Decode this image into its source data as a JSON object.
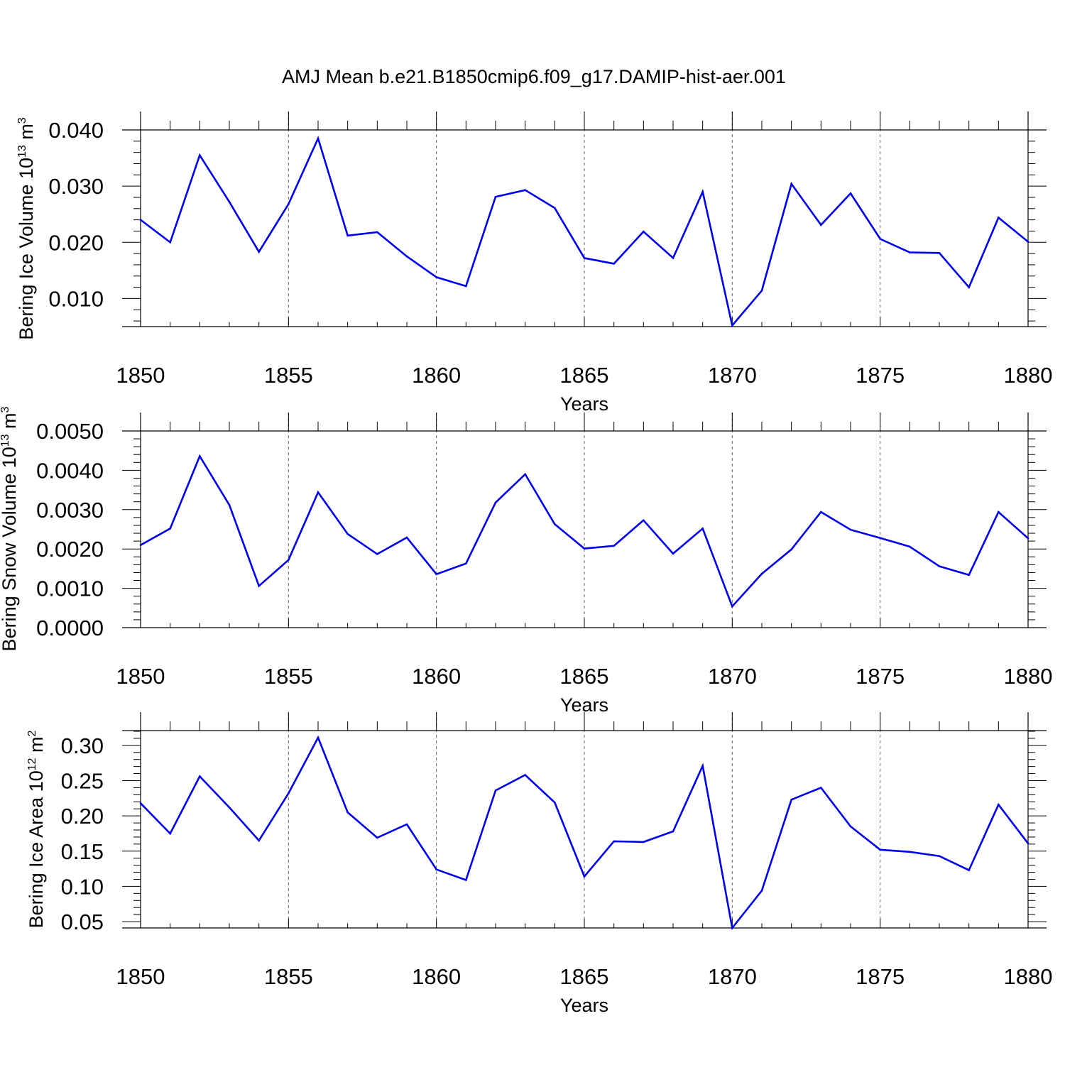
{
  "title": "AMJ Mean b.e21.B1850cmip6.f09_g17.DAMIP-hist-aer.001",
  "line_color": "#0000ee",
  "chart_data": [
    {
      "type": "line",
      "ylabel": {
        "text": "Bering Ice Volume 10",
        "sup": "13",
        "unit": " m",
        "unit_sup": "3"
      },
      "xlabel": "Years",
      "xlim": [
        1850,
        1880
      ],
      "ylim": [
        0.005,
        0.04
      ],
      "yticks": [
        0.01,
        0.02,
        0.03,
        0.04
      ],
      "ytick_labels": [
        "0.010",
        "0.020",
        "0.030",
        "0.040"
      ],
      "xticks": [
        1850,
        1855,
        1860,
        1865,
        1870,
        1875,
        1880
      ],
      "xtick_labels": [
        "1850",
        "1855",
        "1860",
        "1865",
        "1870",
        "1875",
        "1880"
      ],
      "grid": "dashed vertical lines at major x ticks",
      "x": [
        1850,
        1851,
        1852,
        1853,
        1854,
        1855,
        1856,
        1857,
        1858,
        1859,
        1860,
        1861,
        1862,
        1863,
        1864,
        1865,
        1866,
        1867,
        1868,
        1869,
        1870,
        1871,
        1872,
        1873,
        1874,
        1875,
        1876,
        1877,
        1878,
        1879,
        1880
      ],
      "values": [
        0.024,
        0.02,
        0.0355,
        0.0272,
        0.0183,
        0.0268,
        0.0385,
        0.0212,
        0.0218,
        0.0175,
        0.0138,
        0.0122,
        0.0281,
        0.0293,
        0.0261,
        0.0172,
        0.0162,
        0.0219,
        0.0172,
        0.029,
        0.0052,
        0.0114,
        0.0304,
        0.0231,
        0.0287,
        0.0206,
        0.0182,
        0.0181,
        0.012,
        0.0244,
        0.0201
      ]
    },
    {
      "type": "line",
      "ylabel": {
        "text": "Bering Snow Volume 10",
        "sup": "13",
        "unit": " m",
        "unit_sup": "3"
      },
      "xlabel": "Years",
      "xlim": [
        1850,
        1880
      ],
      "ylim": [
        0.0,
        0.005
      ],
      "yticks": [
        0.0,
        0.001,
        0.002,
        0.003,
        0.004,
        0.005
      ],
      "ytick_labels": [
        "0.0000",
        "0.0010",
        "0.0020",
        "0.0030",
        "0.0040",
        "0.0050"
      ],
      "xticks": [
        1850,
        1855,
        1860,
        1865,
        1870,
        1875,
        1880
      ],
      "xtick_labels": [
        "1850",
        "1855",
        "1860",
        "1865",
        "1870",
        "1875",
        "1880"
      ],
      "grid": "dashed vertical lines at major x ticks",
      "x": [
        1850,
        1851,
        1852,
        1853,
        1854,
        1855,
        1856,
        1857,
        1858,
        1859,
        1860,
        1861,
        1862,
        1863,
        1864,
        1865,
        1866,
        1867,
        1868,
        1869,
        1870,
        1871,
        1872,
        1873,
        1874,
        1875,
        1876,
        1877,
        1878,
        1879,
        1880
      ],
      "values": [
        0.0021,
        0.00252,
        0.00436,
        0.00312,
        0.00106,
        0.00172,
        0.00344,
        0.00238,
        0.00187,
        0.00229,
        0.00136,
        0.00163,
        0.00318,
        0.0039,
        0.00263,
        0.00201,
        0.00208,
        0.00273,
        0.00188,
        0.00252,
        0.00054,
        0.00137,
        0.00199,
        0.00294,
        0.00249,
        0.00228,
        0.00206,
        0.00156,
        0.00134,
        0.00294,
        0.00227
      ]
    },
    {
      "type": "line",
      "ylabel": {
        "text": "Bering Ice Area 10",
        "sup": "12",
        "unit": " m",
        "unit_sup": "2"
      },
      "xlabel": "Years",
      "xlim": [
        1850,
        1880
      ],
      "ylim": [
        0.041,
        0.321
      ],
      "yticks": [
        0.05,
        0.1,
        0.15,
        0.2,
        0.25,
        0.3
      ],
      "ytick_labels": [
        "0.05",
        "0.10",
        "0.15",
        "0.20",
        "0.25",
        "0.30"
      ],
      "xticks": [
        1850,
        1855,
        1860,
        1865,
        1870,
        1875,
        1880
      ],
      "xtick_labels": [
        "1850",
        "1855",
        "1860",
        "1865",
        "1870",
        "1875",
        "1880"
      ],
      "grid": "dashed vertical lines at major x ticks",
      "x": [
        1850,
        1851,
        1852,
        1853,
        1854,
        1855,
        1856,
        1857,
        1858,
        1859,
        1860,
        1861,
        1862,
        1863,
        1864,
        1865,
        1866,
        1867,
        1868,
        1869,
        1870,
        1871,
        1872,
        1873,
        1874,
        1875,
        1876,
        1877,
        1878,
        1879,
        1880
      ],
      "values": [
        0.218,
        0.175,
        0.256,
        0.212,
        0.165,
        0.232,
        0.311,
        0.205,
        0.169,
        0.188,
        0.124,
        0.109,
        0.236,
        0.258,
        0.219,
        0.114,
        0.164,
        0.163,
        0.178,
        0.271,
        0.041,
        0.094,
        0.223,
        0.24,
        0.185,
        0.152,
        0.149,
        0.143,
        0.123,
        0.216,
        0.161
      ]
    }
  ]
}
